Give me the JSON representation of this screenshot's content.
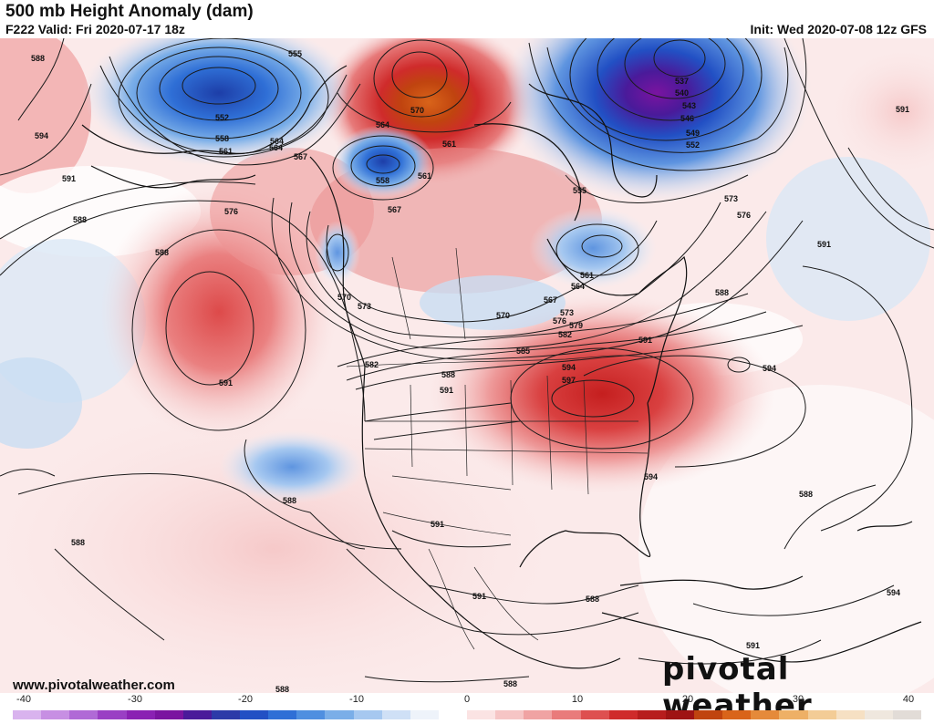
{
  "header": {
    "title": "500 mb Height Anomaly (dam)",
    "valid": "F222 Valid: Fri 2020-07-17 18z",
    "init": "Init: Wed 2020-07-08 12z GFS"
  },
  "watermark": {
    "url": "www.pivotalweather.com",
    "brand": "pivotal weather"
  },
  "colorbar": {
    "ticks": [
      "-40",
      "-30",
      "-20",
      "-10",
      "0",
      "10",
      "20",
      "30",
      "40"
    ],
    "colors": [
      "#d9b3ee",
      "#c78fe3",
      "#b06ad6",
      "#9a3fc4",
      "#8a21b3",
      "#7a14a0",
      "#4a1a9a",
      "#2c3aa8",
      "#2250c4",
      "#2f6fd6",
      "#4f8fe0",
      "#7aaee8",
      "#a6c8f0",
      "#cfe0f6",
      "#eef3fa",
      "#ffffff",
      "#fbe3e3",
      "#f6c5c5",
      "#f0a3a3",
      "#e97b7b",
      "#de5050",
      "#cf2b2b",
      "#b71d1d",
      "#9f1414",
      "#c0440f",
      "#d9641a",
      "#e58a3a",
      "#eeb066",
      "#f3cc96",
      "#f6e0c3",
      "#efe7de",
      "#e2dcd7"
    ]
  },
  "contour_labels": [
    "555",
    "552",
    "558",
    "561",
    "564",
    "567",
    "570",
    "564",
    "561",
    "558",
    "561",
    "555",
    "537",
    "540",
    "543",
    "546",
    "549",
    "552",
    "573",
    "576",
    "591",
    "594",
    "591",
    "588",
    "576",
    "588",
    "591",
    "564",
    "567",
    "570",
    "573",
    "582",
    "588",
    "591",
    "585",
    "591",
    "594",
    "597",
    "594",
    "588",
    "591",
    "594",
    "588",
    "591",
    "591",
    "588",
    "588",
    "588",
    "594",
    "591",
    "588",
    "588",
    "561",
    "564",
    "567",
    "570",
    "573",
    "576",
    "579",
    "582",
    "588"
  ],
  "scale_unit": "dam"
}
